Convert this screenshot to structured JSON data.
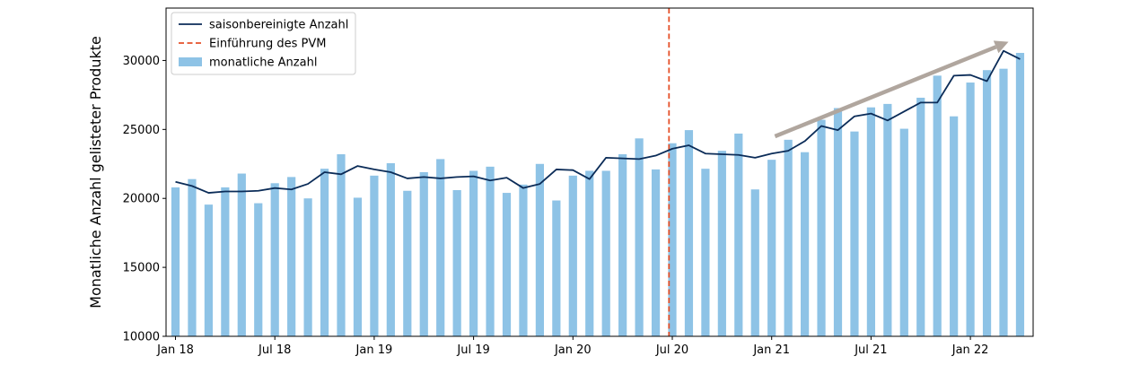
{
  "chart_data": {
    "type": "bar",
    "ylabel": "Monatliche Anzahl gelisteter Produkte",
    "xlabel": "",
    "ylim": [
      10000,
      33800
    ],
    "yticks": [
      10000,
      15000,
      20000,
      25000,
      30000
    ],
    "start_month": "2018-01",
    "xticks": [
      {
        "label": "Jan 18",
        "month_index": 0
      },
      {
        "label": "Jul 18",
        "month_index": 6
      },
      {
        "label": "Jan 19",
        "month_index": 12
      },
      {
        "label": "Jul 19",
        "month_index": 18
      },
      {
        "label": "Jan 20",
        "month_index": 24
      },
      {
        "label": "Jul 20",
        "month_index": 30
      },
      {
        "label": "Jan 21",
        "month_index": 36
      },
      {
        "label": "Jul 21",
        "month_index": 42
      },
      {
        "label": "Jan 22",
        "month_index": 48
      }
    ],
    "series": [
      {
        "name": "monatliche Anzahl",
        "kind": "bar",
        "color": "#8ec3e6",
        "values": [
          20800,
          21400,
          19550,
          20800,
          21800,
          19650,
          21100,
          21550,
          20000,
          22150,
          23200,
          20050,
          21650,
          22550,
          20550,
          21900,
          22850,
          20600,
          22000,
          22300,
          20400,
          21000,
          22500,
          19850,
          21650,
          22000,
          22000,
          23200,
          24350,
          22100,
          24000,
          24950,
          22150,
          23450,
          24700,
          20650,
          22800,
          24250,
          23350,
          25700,
          26550,
          24850,
          26600,
          26850,
          25050,
          27300,
          28900,
          25950,
          28400,
          29300,
          29400,
          30550
        ]
      },
      {
        "name": "saisonbereinigte Anzahl",
        "kind": "line",
        "color": "#0b2c58",
        "values": [
          21200,
          20900,
          20400,
          20500,
          20500,
          20550,
          20750,
          20650,
          21050,
          21900,
          21750,
          22350,
          22100,
          21900,
          21450,
          21550,
          21450,
          21550,
          21600,
          21300,
          21500,
          20750,
          21050,
          22100,
          22050,
          21400,
          22950,
          22900,
          22850,
          23100,
          23600,
          23850,
          23250,
          23200,
          23150,
          22950,
          23250,
          23450,
          24150,
          25250,
          24950,
          25950,
          26150,
          25650,
          26300,
          26950,
          26950,
          28900,
          28950,
          28500,
          30700,
          30100
        ]
      }
    ],
    "annotations": [
      {
        "name": "Einführung des PVM",
        "kind": "vline",
        "month_index": 29.8,
        "color": "#e5512a",
        "style": "dashed"
      },
      {
        "kind": "arrow",
        "from": {
          "month_index": 36.2,
          "y": 24500
        },
        "to": {
          "month_index": 50.3,
          "y": 31350
        },
        "color": "#b0a69e"
      }
    ],
    "legend_position": "upper-left",
    "legend": [
      {
        "label": "saisonbereinigte Anzahl",
        "kind": "line",
        "color": "#0b2c58"
      },
      {
        "label": "Einführung des PVM",
        "kind": "dashed",
        "color": "#e5512a"
      },
      {
        "label": "monatliche Anzahl",
        "kind": "bar",
        "color": "#8ec3e6"
      }
    ]
  }
}
